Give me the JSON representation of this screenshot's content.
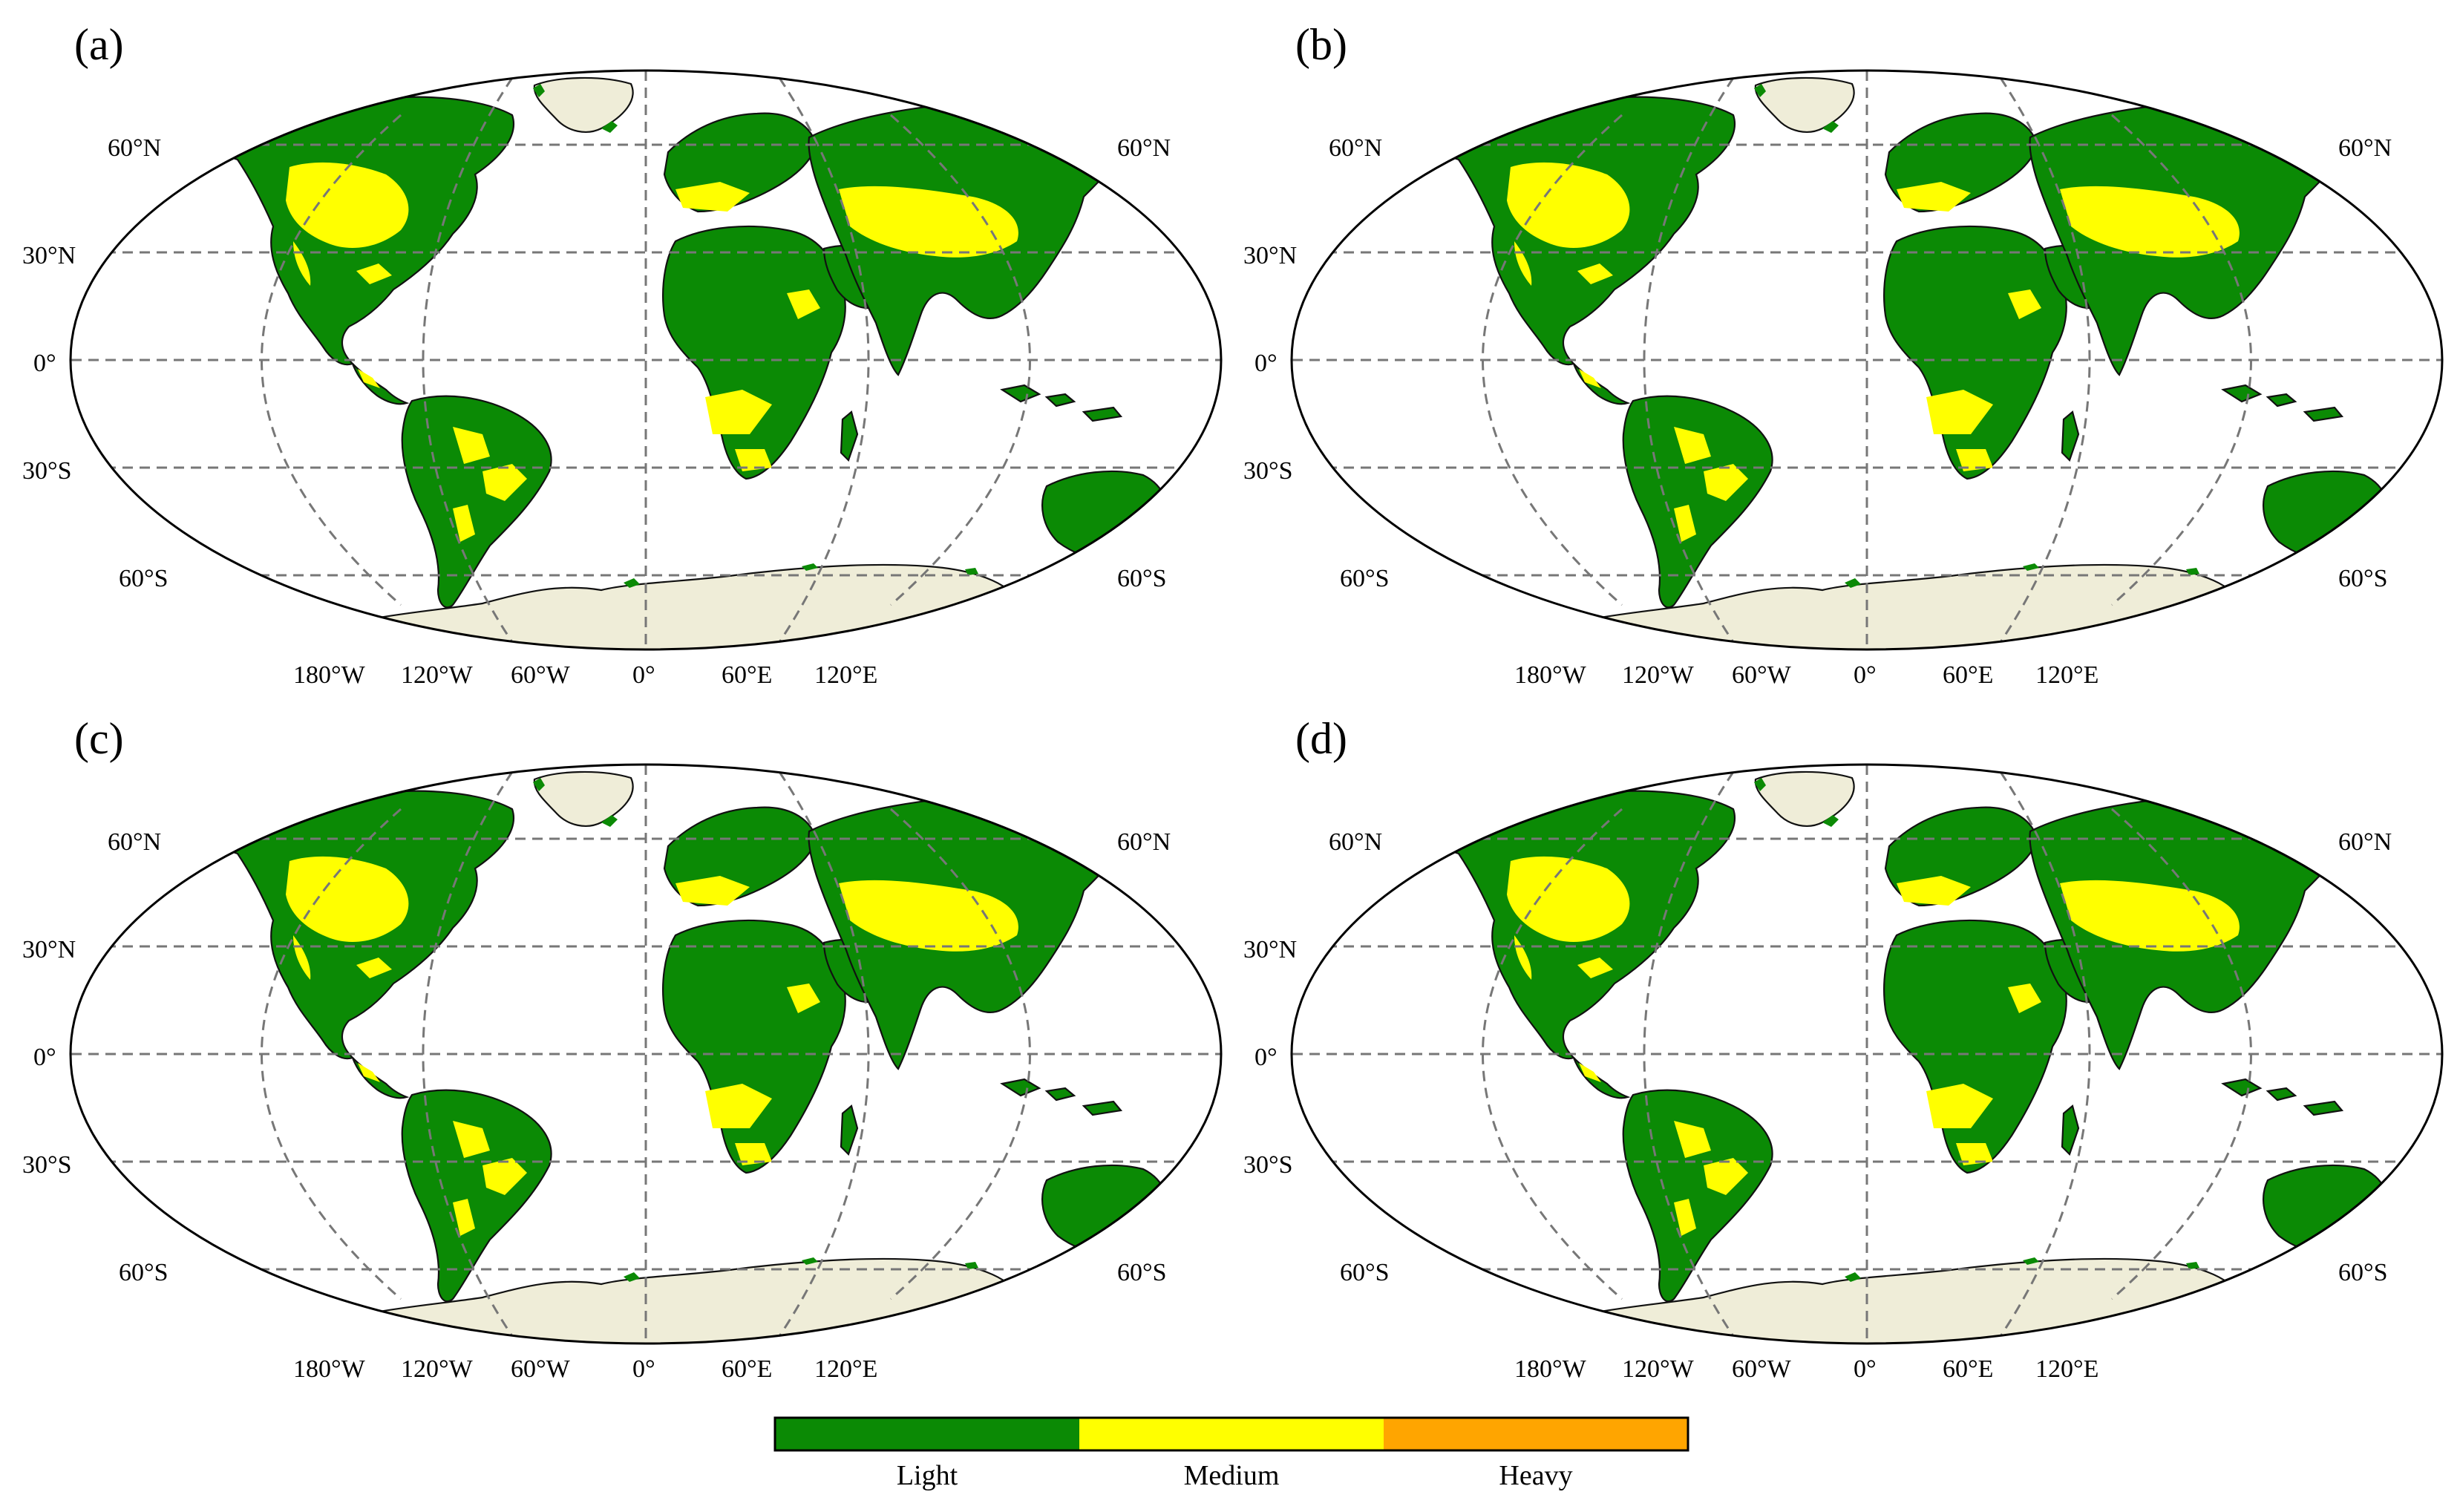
{
  "panels": [
    {
      "id": "a",
      "label": "(a)"
    },
    {
      "id": "b",
      "label": "(b)"
    },
    {
      "id": "c",
      "label": "(c)"
    },
    {
      "id": "d",
      "label": "(d)"
    }
  ],
  "latitude_labels": [
    "60°N",
    "30°N",
    "0°",
    "30°S",
    "60°S"
  ],
  "longitude_labels": [
    "180°W",
    "120°W",
    "60°W",
    "0°",
    "60°E",
    "120°E"
  ],
  "legend": {
    "items": [
      {
        "label": "Light",
        "color": "#0b8a05"
      },
      {
        "label": "Medium",
        "color": "#ffff00"
      },
      {
        "label": "Heavy",
        "color": "#ffa500"
      }
    ]
  },
  "colors": {
    "ice": "#efedd8",
    "ocean": "#ffffff",
    "grid": "#777777",
    "coast": "#111111"
  }
}
